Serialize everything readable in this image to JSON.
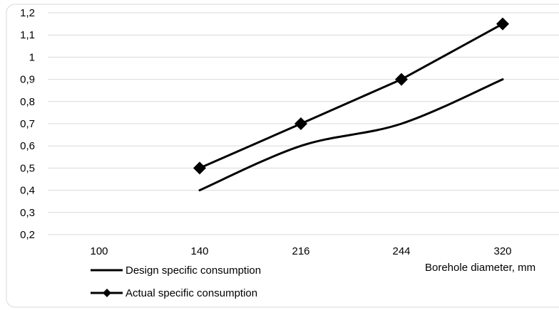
{
  "chart_data": {
    "type": "line",
    "categories": [
      "100",
      "140",
      "216",
      "244",
      "320"
    ],
    "y_tick_labels": [
      "0,2",
      "0,3",
      "0,4",
      "0,5",
      "0,6",
      "0,7",
      "0,8",
      "0,9",
      "1",
      "1,1",
      "1,2"
    ],
    "ylim": [
      0.2,
      1.2
    ],
    "y_step": 0.1,
    "xlabel": "Borehole diameter, mm",
    "ylabel": "",
    "title": "",
    "grid": true,
    "legend_position": "bottom-left",
    "series": [
      {
        "name": "Design specific consumption",
        "values": [
          null,
          0.4,
          0.6,
          0.7,
          0.9
        ],
        "color": "#000000",
        "marker": "none",
        "smooth": true
      },
      {
        "name": "Actual specific consumption",
        "values": [
          null,
          0.5,
          0.7,
          0.9,
          1.15
        ],
        "color": "#000000",
        "marker": "diamond",
        "smooth": false
      }
    ]
  }
}
